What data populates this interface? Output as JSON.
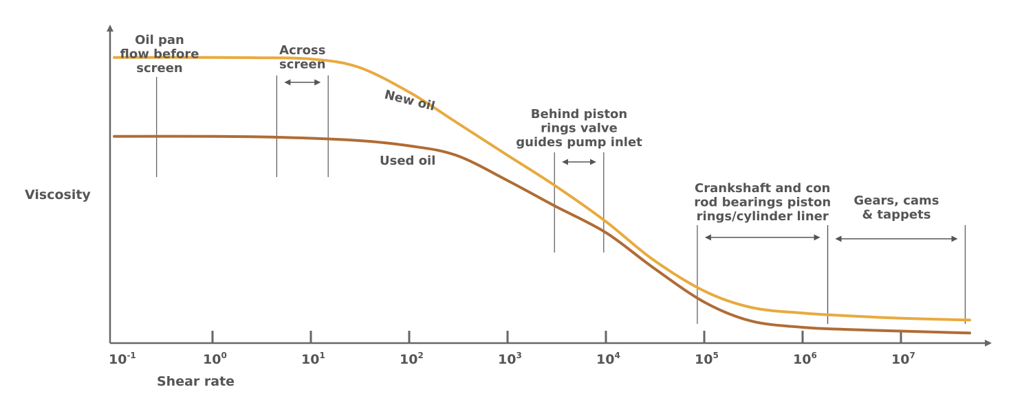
{
  "chart_data": {
    "type": "line",
    "xlabel": "Shear rate",
    "ylabel": "Viscosity",
    "x_scale": "log",
    "xlim": [
      0.1,
      50000000
    ],
    "x_ticks": [
      {
        "base": "10",
        "exp": "-1",
        "value": 0.1
      },
      {
        "base": "10",
        "exp": "0",
        "value": 1
      },
      {
        "base": "10",
        "exp": "1",
        "value": 10
      },
      {
        "base": "10",
        "exp": "2",
        "value": 100
      },
      {
        "base": "10",
        "exp": "3",
        "value": 1000
      },
      {
        "base": "10",
        "exp": "4",
        "value": 10000
      },
      {
        "base": "10",
        "exp": "5",
        "value": 100000
      },
      {
        "base": "10",
        "exp": "6",
        "value": 1000000
      },
      {
        "base": "10",
        "exp": "7",
        "value": 10000000
      }
    ],
    "ylim": [
      0,
      100
    ],
    "grid": false,
    "series": [
      {
        "name": "New oil",
        "color": "#E8AA3F",
        "points": [
          [
            0.1,
            90.5
          ],
          [
            1,
            90.5
          ],
          [
            3,
            90.4
          ],
          [
            10,
            90.0
          ],
          [
            30,
            87.5
          ],
          [
            100,
            79.5
          ],
          [
            300,
            70.0
          ],
          [
            1000,
            59.5
          ],
          [
            3000,
            50.0
          ],
          [
            10000,
            38.5
          ],
          [
            30000,
            26.5
          ],
          [
            100000,
            16.5
          ],
          [
            300000,
            11.3
          ],
          [
            1000000,
            9.5
          ],
          [
            3000000,
            8.6
          ],
          [
            10000000,
            7.9
          ],
          [
            50000000,
            7.3
          ]
        ]
      },
      {
        "name": "Used oil",
        "color": "#B06C34",
        "points": [
          [
            0.1,
            65.5
          ],
          [
            1,
            65.5
          ],
          [
            5,
            65.2
          ],
          [
            30,
            64.2
          ],
          [
            100,
            62.5
          ],
          [
            300,
            59.5
          ],
          [
            1000,
            51.5
          ],
          [
            3000,
            43.5
          ],
          [
            10000,
            35.0
          ],
          [
            30000,
            24.0
          ],
          [
            100000,
            13.0
          ],
          [
            300000,
            7.0
          ],
          [
            1000000,
            5.0
          ],
          [
            3000000,
            4.3
          ],
          [
            10000000,
            3.8
          ],
          [
            50000000,
            3.2
          ]
        ]
      }
    ],
    "regions": [
      {
        "name": "oil-pan",
        "lines": [
          "Oil pan",
          "flow before",
          "screen"
        ],
        "x_markers": [
          0.27
        ]
      },
      {
        "name": "across-screen",
        "lines": [
          "Across",
          "screen"
        ],
        "x_markers": [
          4.5,
          15
        ],
        "arrow": true
      },
      {
        "name": "behind-piston",
        "lines": [
          "Behind piston",
          "rings valve",
          "guides pump inlet"
        ],
        "x_markers": [
          3000,
          9500
        ],
        "arrow": true
      },
      {
        "name": "crankshaft",
        "lines": [
          "Crankshaft and con",
          "rod bearings piston",
          "rings/cylinder liner"
        ],
        "x_markers": [
          85000,
          1800000
        ],
        "arrow": true
      },
      {
        "name": "gears",
        "lines": [
          "Gears, cams",
          "& tappets"
        ],
        "x_markers": [
          1800000,
          45000000
        ],
        "arrow": true
      }
    ]
  }
}
